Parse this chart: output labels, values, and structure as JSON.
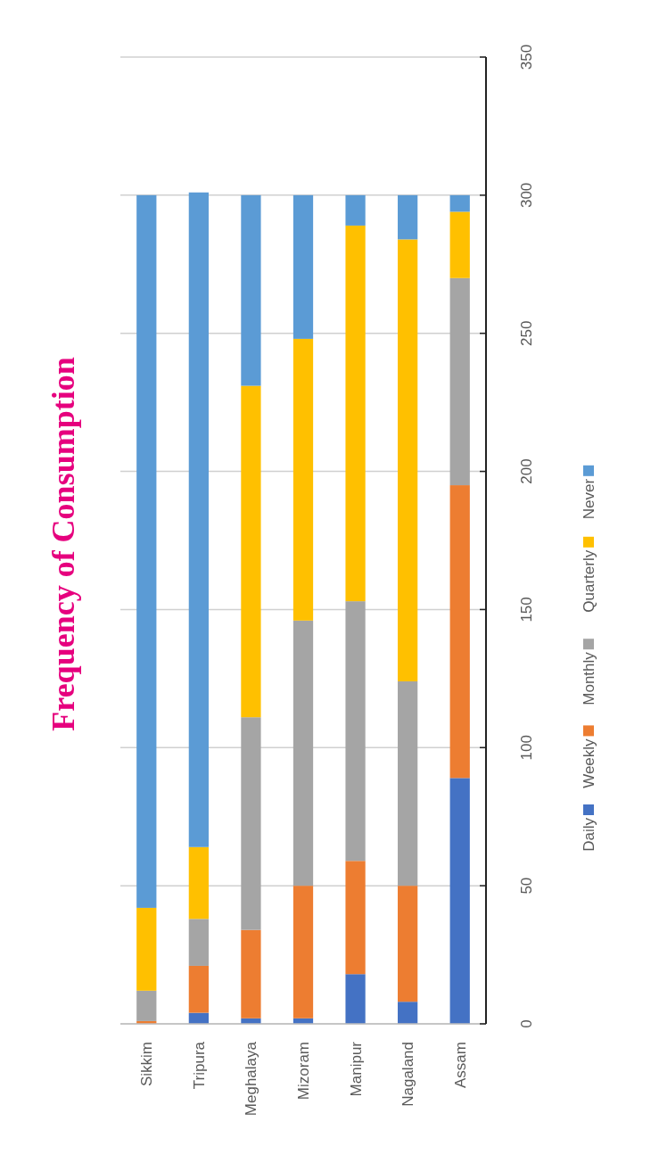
{
  "chart_data": {
    "type": "bar",
    "title": "Frequency of Consumption",
    "stacked": true,
    "categories": [
      "Sikkim",
      "Tripura",
      "Meghalaya",
      "Mizoram",
      "Manipur",
      "Nagaland",
      "Assam"
    ],
    "series": [
      {
        "name": "Daily",
        "color": "#4472c4",
        "values": [
          0,
          4,
          2,
          2,
          18,
          8,
          89
        ]
      },
      {
        "name": "Weekly",
        "color": "#ed7d31",
        "values": [
          1,
          17,
          32,
          48,
          41,
          42,
          106
        ]
      },
      {
        "name": "Monthly",
        "color": "#a5a5a5",
        "values": [
          11,
          17,
          77,
          96,
          94,
          74,
          75
        ]
      },
      {
        "name": "Quarterly",
        "color": "#ffc000",
        "values": [
          30,
          26,
          120,
          102,
          136,
          160,
          24
        ]
      },
      {
        "name": "Never",
        "color": "#5b9bd5",
        "values": [
          258,
          237,
          69,
          52,
          11,
          16,
          6
        ]
      }
    ],
    "ylim": [
      0,
      350
    ],
    "yticks": [
      0,
      50,
      100,
      150,
      200,
      250,
      300,
      350
    ],
    "grid": "y",
    "legend": "right"
  }
}
